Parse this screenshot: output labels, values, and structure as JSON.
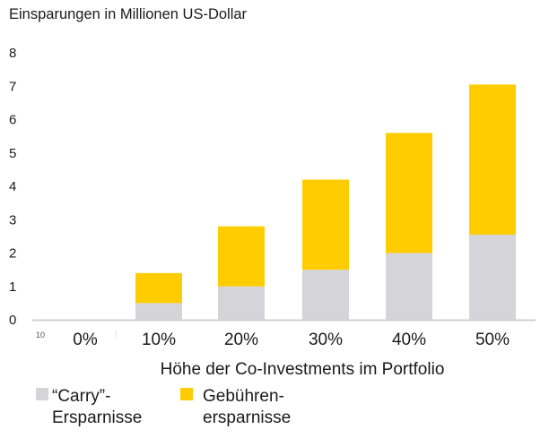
{
  "chart_data": {
    "type": "bar",
    "stacked": true,
    "title": "Einsparungen in Millionen US-Dollar",
    "xlabel": "Höhe der Co-Investments im Portfolio",
    "ylabel": "",
    "ylim": [
      0,
      8
    ],
    "yticks": [
      "0",
      "1",
      "2",
      "3",
      "4",
      "5",
      "6",
      "7",
      "8"
    ],
    "grid": false,
    "categories": [
      "0%",
      "10%",
      "20%",
      "30%",
      "40%",
      "50%"
    ],
    "series": [
      {
        "name": "“Carry”-Ersparnisse",
        "legend_lines": [
          "“Carry”-",
          "Ersparnisse"
        ],
        "color": "#d4d4d9",
        "values": [
          0,
          0.5,
          1.0,
          1.5,
          2.0,
          2.55
        ]
      },
      {
        "name": "Gebühren-ersparnisse",
        "legend_lines": [
          "Gebühren-",
          "ersparnisse"
        ],
        "color": "#ffcc00",
        "values": [
          0,
          0.9,
          1.8,
          2.7,
          3.6,
          4.5
        ]
      }
    ],
    "legend_position": "bottom-left",
    "stray_label": "10"
  },
  "colors": {
    "baseline": "#d0d0d0",
    "text": "#1a1a1a"
  }
}
